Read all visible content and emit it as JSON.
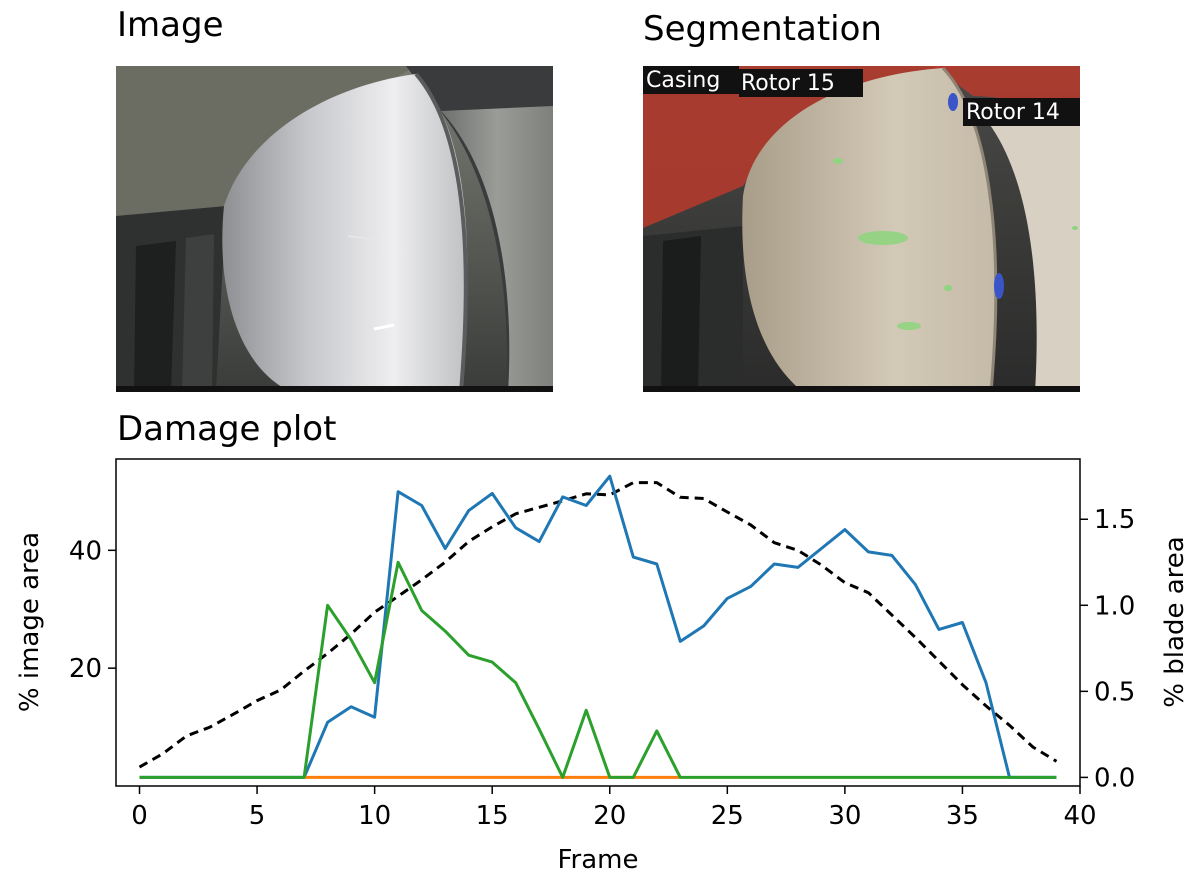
{
  "panels": {
    "image_title": "Image",
    "segmentation_title": "Segmentation",
    "plot_title": "Damage plot"
  },
  "segmentation_labels": {
    "casing": "Casing",
    "rotor_15": "Rotor 15",
    "rotor_14": "Rotor 14"
  },
  "colors": {
    "blue": "#1f77b4",
    "orange": "#ff7f0e",
    "green": "#2ca02c",
    "dashed": "#000000",
    "casing_overlay": "#b83a2c",
    "rotor15_overlay": "#c8bfaa",
    "rotor14_overlay": "#d6cfc0"
  },
  "chart_data": {
    "type": "line",
    "title": "Damage plot",
    "xlabel": "Frame",
    "ylabel_left": "% image area",
    "ylabel_right": "% blade area",
    "xlim": [
      -1,
      40
    ],
    "ylim_left": [
      0,
      55.5
    ],
    "ylim_right": [
      -0.05,
      1.85
    ],
    "x_ticks": [
      0,
      5,
      10,
      15,
      20,
      25,
      30,
      35,
      40
    ],
    "y_ticks_left": [
      20,
      40
    ],
    "y_ticks_right": [
      0.0,
      0.5,
      1.0,
      1.5
    ],
    "y_tick_labels_right": [
      "0.0",
      "0.5",
      "1.0",
      "1.5"
    ],
    "grid": false,
    "series": [
      {
        "color": "#000000",
        "axis": "left",
        "style": "dashed",
        "x": [
          0,
          1,
          2,
          3,
          4,
          5,
          6,
          7,
          8,
          9,
          10,
          11,
          12,
          13,
          14,
          15,
          16,
          17,
          18,
          19,
          20,
          21,
          22,
          23,
          24,
          25,
          26,
          27,
          28,
          29,
          30,
          31,
          32,
          33,
          34,
          35,
          36,
          37,
          38,
          39
        ],
        "y": [
          3.2,
          5.5,
          8.5,
          10,
          12.2,
          14.5,
          16.3,
          19.5,
          22.5,
          25.8,
          29.5,
          32.2,
          35,
          38,
          41.5,
          44,
          46.2,
          47.3,
          48.4,
          49.6,
          49.4,
          51.5,
          51.5,
          49,
          48.8,
          46.5,
          44.3,
          41.3,
          40,
          37.5,
          34.5,
          32.8,
          29,
          25.2,
          21.2,
          17.2,
          13.6,
          10.3,
          6.6,
          4.2
        ]
      },
      {
        "color": "#1f77b4",
        "axis": "right",
        "style": "solid",
        "x": [
          0,
          1,
          2,
          3,
          4,
          5,
          6,
          7,
          8,
          9,
          10,
          11,
          12,
          13,
          14,
          15,
          16,
          17,
          18,
          19,
          20,
          21,
          22,
          23,
          24,
          25,
          26,
          27,
          28,
          29,
          30,
          31,
          32,
          33,
          34,
          35,
          36,
          37,
          38,
          39
        ],
        "y": [
          0,
          0,
          0,
          0,
          0,
          0,
          0,
          0,
          0.32,
          0.41,
          0.35,
          1.66,
          1.58,
          1.33,
          1.55,
          1.65,
          1.45,
          1.37,
          1.63,
          1.58,
          1.75,
          1.28,
          1.24,
          0.79,
          0.88,
          1.04,
          1.11,
          1.24,
          1.22,
          1.33,
          1.44,
          1.31,
          1.29,
          1.12,
          0.86,
          0.9,
          0.55,
          0,
          0,
          0
        ]
      },
      {
        "color": "#ff7f0e",
        "axis": "right",
        "style": "solid",
        "x": [
          7,
          23
        ],
        "y": [
          0,
          0
        ]
      },
      {
        "color": "#2ca02c",
        "axis": "right",
        "style": "solid",
        "x": [
          0,
          1,
          2,
          3,
          4,
          5,
          6,
          7,
          8,
          9,
          10,
          11,
          12,
          13,
          14,
          15,
          16,
          17,
          18,
          19,
          20,
          21,
          22,
          23,
          24,
          25,
          26,
          27,
          28,
          29,
          30,
          31,
          32,
          33,
          34,
          35,
          36,
          37,
          38,
          39
        ],
        "y": [
          0,
          0,
          0,
          0,
          0,
          0,
          0,
          0,
          1.0,
          0.8,
          0.55,
          1.25,
          0.97,
          0.85,
          0.71,
          0.67,
          0.55,
          0.28,
          0,
          0.39,
          0,
          0,
          0.27,
          0,
          0,
          0,
          0,
          0,
          0,
          0,
          0,
          0,
          0,
          0,
          0,
          0,
          0,
          0,
          0,
          0
        ]
      }
    ]
  }
}
